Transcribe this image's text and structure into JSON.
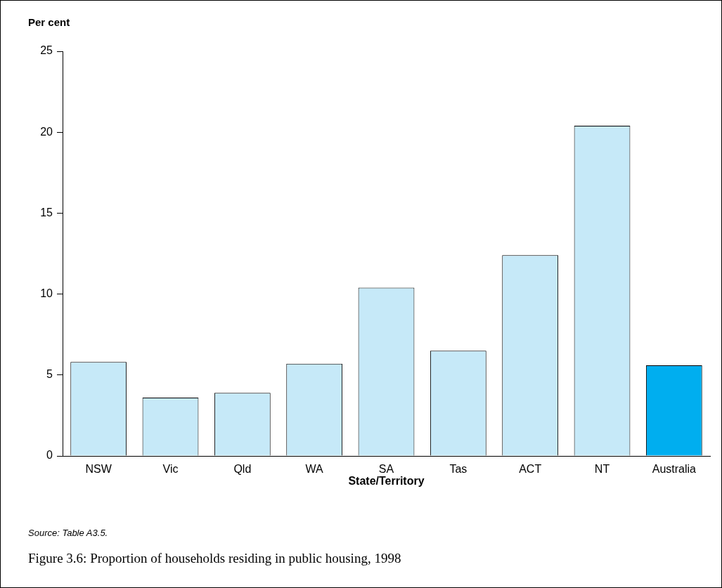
{
  "chart_data": {
    "type": "bar",
    "title": "Figure 3.6: Proportion of households residing in public housing, 1998",
    "ylabel": "Per cent",
    "xlabel": "State/Territory",
    "annotations": [
      "Source: Table A3.5."
    ],
    "categories": [
      "NSW",
      "Vic",
      "Qld",
      "WA",
      "SA",
      "Tas",
      "ACT",
      "NT",
      "Australia"
    ],
    "values": [
      5.8,
      3.6,
      3.9,
      5.7,
      10.4,
      6.5,
      12.4,
      20.4,
      5.6
    ],
    "colors": [
      "#c6e9f8",
      "#c6e9f8",
      "#c6e9f8",
      "#c6e9f8",
      "#c6e9f8",
      "#c6e9f8",
      "#c6e9f8",
      "#c6e9f8",
      "#00aeef"
    ],
    "ylim": [
      0,
      25
    ],
    "yticks": [
      0,
      5,
      10,
      15,
      20,
      25
    ],
    "grid": false,
    "legend": false
  }
}
